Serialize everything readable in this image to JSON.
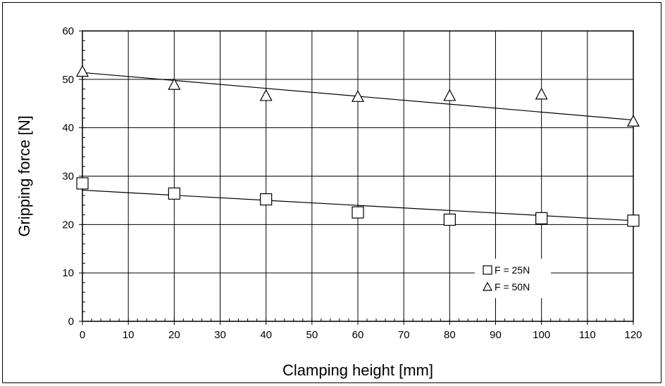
{
  "chart_data": {
    "type": "scatter",
    "title": "",
    "xlabel": "Clamping height [mm]",
    "ylabel": "Gripping force [N]",
    "xlim": [
      0,
      120
    ],
    "ylim": [
      0,
      60
    ],
    "xticks": [
      0,
      10,
      20,
      30,
      40,
      50,
      60,
      70,
      80,
      90,
      100,
      110,
      120
    ],
    "yticks": [
      0,
      10,
      20,
      30,
      40,
      50,
      60
    ],
    "grid": true,
    "legend_position": "bottom-right",
    "series": [
      {
        "name": "F = 25N",
        "marker": "square",
        "x": [
          0,
          20,
          40,
          60,
          80,
          100,
          120
        ],
        "y": [
          28.5,
          26.4,
          25.2,
          22.5,
          21.0,
          21.3,
          20.8
        ],
        "trendline": {
          "x": [
            0,
            120
          ],
          "y": [
            27.1,
            20.8
          ]
        }
      },
      {
        "name": "F = 50N",
        "marker": "triangle",
        "x": [
          0,
          20,
          40,
          60,
          80,
          100,
          120
        ],
        "y": [
          51.5,
          48.8,
          46.5,
          46.3,
          46.5,
          46.8,
          41.2
        ],
        "trendline": {
          "x": [
            0,
            120
          ],
          "y": [
            51.4,
            41.6
          ]
        }
      }
    ]
  }
}
